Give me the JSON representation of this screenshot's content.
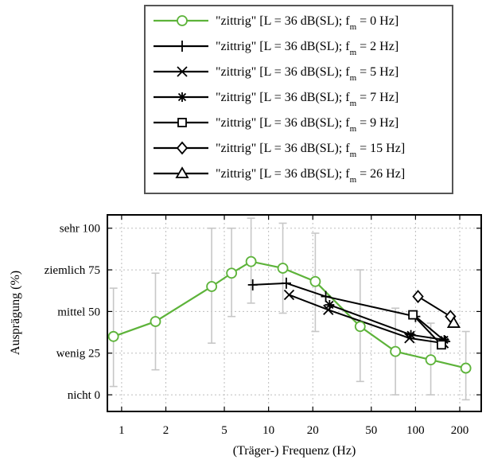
{
  "chart_data": {
    "type": "line",
    "xlabel": "(Träger-) Frequenz (Hz)",
    "ylabel": "Ausprägung (%)",
    "xscale": "log",
    "xlim": [
      0.8,
      280
    ],
    "ylim": [
      -10,
      108
    ],
    "grid": true,
    "legend_position": "top-center",
    "xticks": [
      {
        "value": 1,
        "label": "1"
      },
      {
        "value": 2,
        "label": "2"
      },
      {
        "value": 5,
        "label": "5"
      },
      {
        "value": 10,
        "label": "10"
      },
      {
        "value": 20,
        "label": "20"
      },
      {
        "value": 50,
        "label": "50"
      },
      {
        "value": 100,
        "label": "100"
      },
      {
        "value": 200,
        "label": "200"
      }
    ],
    "yticks": [
      {
        "value": 0,
        "label": "nicht 0"
      },
      {
        "value": 25,
        "label": "wenig 25"
      },
      {
        "value": 50,
        "label": "mittel 50"
      },
      {
        "value": 75,
        "label": "ziemlich 75"
      },
      {
        "value": 100,
        "label": "sehr 100"
      }
    ],
    "series": [
      {
        "name_prefix": "\"zittrig\" [L = 36 dB(SL); f",
        "name_sub": "m",
        "name_suffix": " = 0 Hz]",
        "color": "#5db33a",
        "marker": "circle",
        "points": [
          {
            "x": 0.88,
            "y": 35,
            "lo": 5,
            "hi": 64
          },
          {
            "x": 1.7,
            "y": 44,
            "lo": 15,
            "hi": 73
          },
          {
            "x": 4.1,
            "y": 65,
            "lo": 31,
            "hi": 100
          },
          {
            "x": 5.6,
            "y": 73,
            "lo": 47,
            "hi": 100
          },
          {
            "x": 7.6,
            "y": 80,
            "lo": 55,
            "hi": 106
          },
          {
            "x": 12.5,
            "y": 76,
            "lo": 49,
            "hi": 103
          },
          {
            "x": 20.8,
            "y": 68,
            "lo": 38,
            "hi": 97
          },
          {
            "x": 42,
            "y": 41,
            "lo": 8,
            "hi": 75
          },
          {
            "x": 73,
            "y": 26,
            "lo": 0,
            "hi": 52
          },
          {
            "x": 127,
            "y": 21,
            "lo": 0,
            "hi": 43
          },
          {
            "x": 220,
            "y": 16,
            "lo": -3,
            "hi": 38
          }
        ]
      },
      {
        "name_prefix": "\"zittrig\" [L = 36 dB(SL); f",
        "name_sub": "m",
        "name_suffix": " = 2 Hz]",
        "color": "#000000",
        "marker": "plus",
        "points": [
          {
            "x": 7.8,
            "y": 66
          },
          {
            "x": 13.2,
            "y": 67
          },
          {
            "x": 24.5,
            "y": 59
          },
          {
            "x": 100,
            "y": 47
          },
          {
            "x": 160,
            "y": 32
          }
        ]
      },
      {
        "name_prefix": "\"zittrig\" [L = 36 dB(SL); f",
        "name_sub": "m",
        "name_suffix": " = 5 Hz]",
        "color": "#000000",
        "marker": "x",
        "points": [
          {
            "x": 13.8,
            "y": 60
          },
          {
            "x": 25.5,
            "y": 51
          },
          {
            "x": 91,
            "y": 34
          },
          {
            "x": 155,
            "y": 31
          }
        ]
      },
      {
        "name_prefix": "\"zittrig\" [L = 36 dB(SL); f",
        "name_sub": "m",
        "name_suffix": " = 7 Hz]",
        "color": "#000000",
        "marker": "asterisk",
        "points": [
          {
            "x": 26,
            "y": 54
          },
          {
            "x": 93,
            "y": 36
          },
          {
            "x": 157,
            "y": 33
          }
        ]
      },
      {
        "name_prefix": "\"zittrig\" [L = 36 dB(SL); f",
        "name_sub": "m",
        "name_suffix": " = 9 Hz]",
        "color": "#000000",
        "marker": "square",
        "points": [
          {
            "x": 96,
            "y": 48
          },
          {
            "x": 150,
            "y": 30
          }
        ]
      },
      {
        "name_prefix": "\"zittrig\" [L = 36 dB(SL); f",
        "name_sub": "m",
        "name_suffix": " = 15 Hz]",
        "color": "#000000",
        "marker": "diamond",
        "points": [
          {
            "x": 104,
            "y": 59
          },
          {
            "x": 173,
            "y": 47
          }
        ]
      },
      {
        "name_prefix": "\"zittrig\" [L = 36 dB(SL); f",
        "name_sub": "m",
        "name_suffix": " = 26 Hz]",
        "color": "#000000",
        "marker": "triangle",
        "points": [
          {
            "x": 182,
            "y": 43
          }
        ]
      }
    ]
  }
}
